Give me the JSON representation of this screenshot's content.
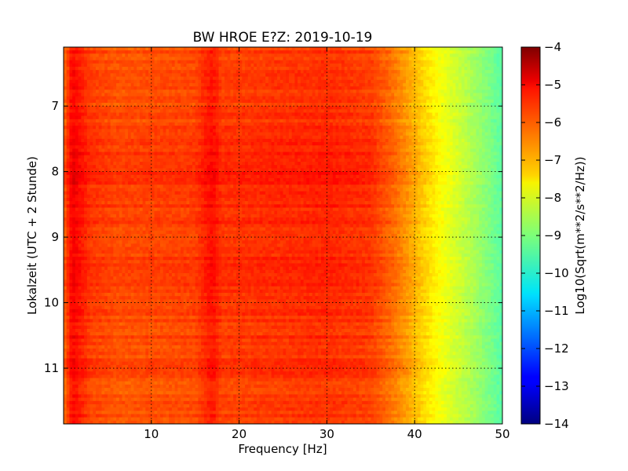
{
  "chart_data": {
    "type": "heatmap",
    "title": "BW HROE E?Z: 2019-10-19",
    "xlabel": "Frequency [Hz]",
    "ylabel": "Lokalzeit (UTC + 2 Stunde)",
    "xlim": [
      0,
      50
    ],
    "ylim": [
      11.85,
      6.1
    ],
    "x_ticks": [
      10,
      20,
      30,
      40,
      50
    ],
    "x_tick_labels": [
      "10",
      "20",
      "30",
      "40",
      "50"
    ],
    "y_ticks": [
      7,
      8,
      9,
      10,
      11
    ],
    "y_tick_labels": [
      "7",
      "8",
      "9",
      "10",
      "11"
    ],
    "grid": true,
    "colormap": "jet",
    "colorbar": {
      "label": "Log10(Sqrt(m**2/s**2/Hz))",
      "range": [
        -14,
        -4
      ],
      "ticks": [
        -4,
        -5,
        -6,
        -7,
        -8,
        -9,
        -10,
        -11,
        -12,
        -13,
        -14
      ],
      "tick_labels": [
        "−4",
        "−5",
        "−6",
        "−7",
        "−8",
        "−9",
        "−10",
        "−11",
        "−12",
        "−13",
        "−14"
      ]
    },
    "frequency_profile": {
      "frequency_hz": [
        0,
        1,
        3,
        6,
        10,
        15,
        16.5,
        17,
        18,
        22,
        30,
        35,
        37,
        39,
        41,
        43,
        45,
        47,
        50
      ],
      "log_value": [
        -6.4,
        -5.3,
        -5.9,
        -6.1,
        -6.05,
        -6.0,
        -5.6,
        -5.5,
        -5.9,
        -5.85,
        -5.75,
        -5.9,
        -6.3,
        -6.8,
        -7.4,
        -7.9,
        -8.3,
        -8.7,
        -9.4
      ]
    },
    "time_profile": {
      "hour": [
        6.1,
        7.0,
        7.5,
        7.8,
        8.0,
        8.5,
        9.0,
        9.5,
        10.0,
        10.5,
        11.0,
        11.5,
        11.85
      ],
      "offset_log": [
        0.0,
        0.05,
        0.1,
        0.3,
        0.32,
        0.2,
        0.12,
        0.18,
        0.12,
        0.08,
        0.05,
        0.02,
        0.0
      ]
    }
  }
}
